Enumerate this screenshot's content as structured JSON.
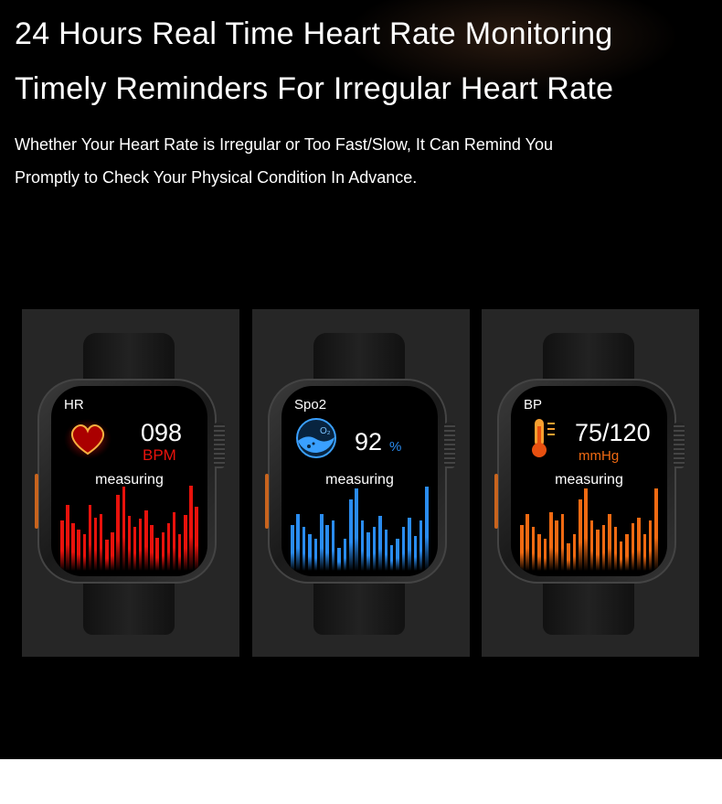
{
  "headline1": "24 Hours Real Time Heart Rate Monitoring",
  "headline2": "Timely Reminders For Irregular Heart Rate",
  "body_line1": "Whether Your Heart Rate is Irregular or Too Fast/Slow, It Can Remind You",
  "body_line2": "Promptly to Check Your Physical Condition In Advance.",
  "watches": [
    {
      "label": "HR",
      "value": "098",
      "unit": "BPM",
      "status": "measuring",
      "icon": "heart-icon",
      "color": "#e8120c"
    },
    {
      "label": "Spo2",
      "value": "92",
      "unit": "%",
      "status": "measuring",
      "icon": "oxygen-icon",
      "icon_text": "O2",
      "color": "#2a8cf0"
    },
    {
      "label": "BP",
      "value": "75/120",
      "unit": "mmHg",
      "status": "measuring",
      "icon": "thermometer-icon",
      "color": "#f06a12"
    }
  ]
}
